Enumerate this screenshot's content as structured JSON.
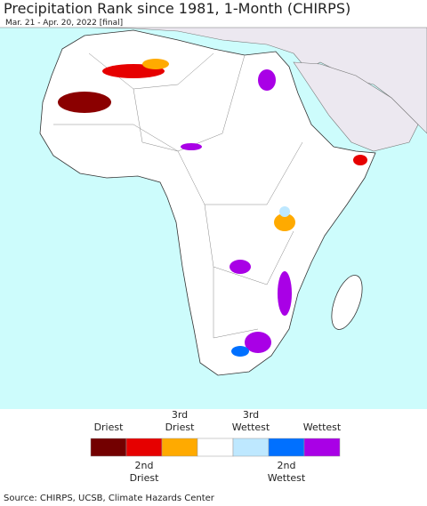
{
  "header": {
    "title": "Precipitation Rank since 1981, 1-Month (CHIRPS)",
    "subtitle": "Mar. 21 - Apr. 20, 2022 [final]"
  },
  "legend": {
    "classes": [
      {
        "color": "#730000",
        "label": "Driest"
      },
      {
        "color": "#e60000",
        "label": "2nd Driest"
      },
      {
        "color": "#ffaa00",
        "label": "3rd Driest"
      },
      {
        "color": "#ffffff",
        "label": null
      },
      {
        "color": "#bee8ff",
        "label": "3rd Wettest"
      },
      {
        "color": "#0070ff",
        "label": "2nd Wettest"
      },
      {
        "color": "#a900e6",
        "label": "Wettest"
      }
    ]
  },
  "footer": {
    "source": "Source: CHIRPS, UCSB, Climate Hazards Center"
  }
}
